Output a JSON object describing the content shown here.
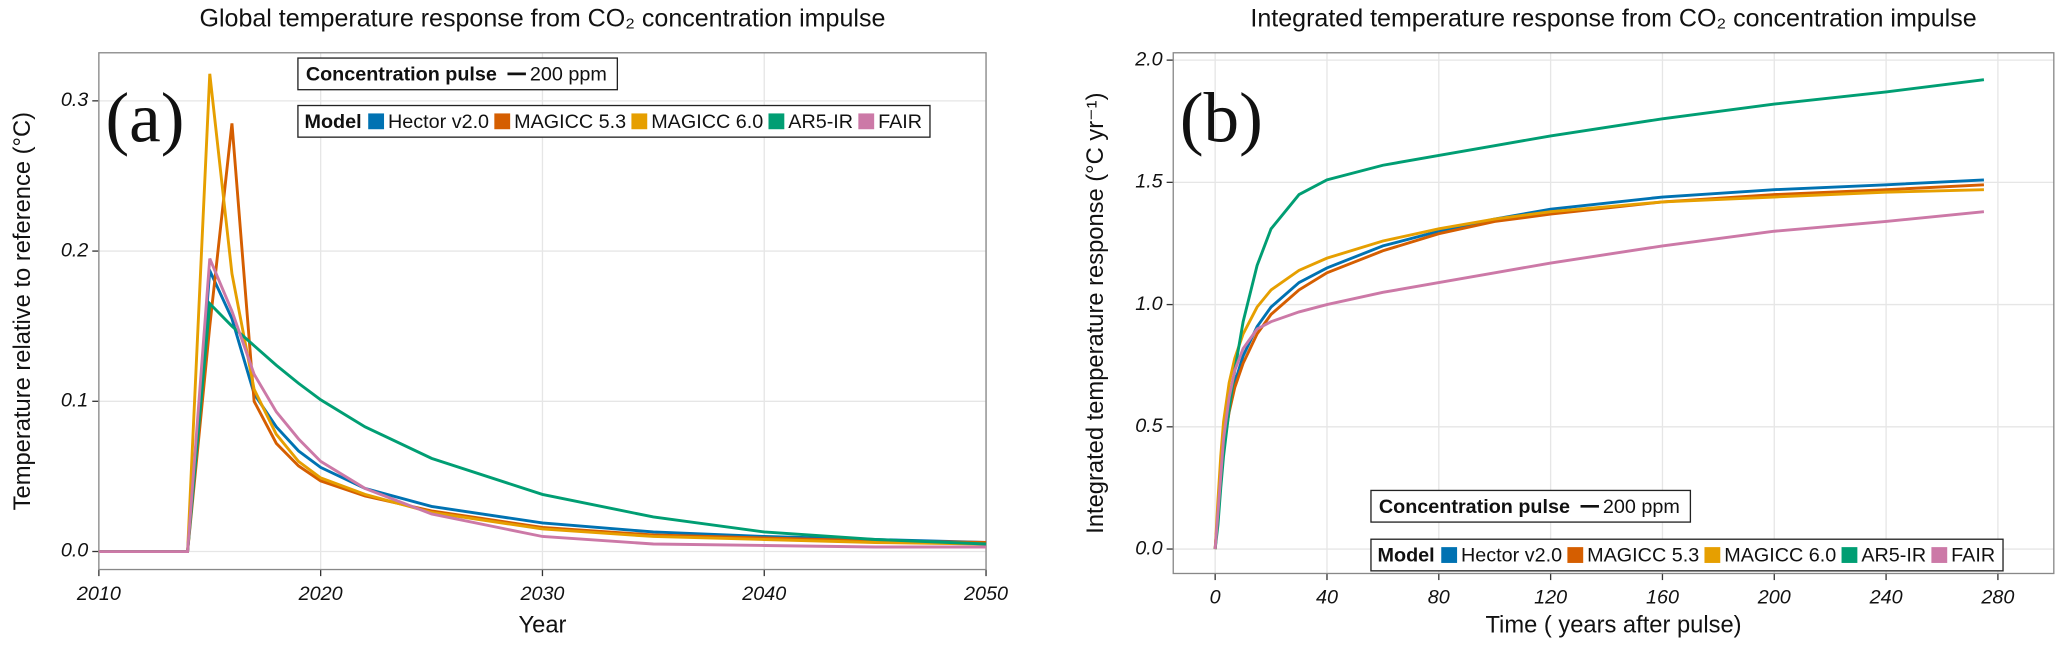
{
  "chart_data": [
    {
      "type": "line",
      "title": "Global temperature response from CO₂ concentration impulse",
      "x_label": "Year",
      "y_label": "Temperature relative to reference (°C)",
      "panel_label": "(a)",
      "pulse_legend": {
        "title": "Concentration pulse",
        "label": "200 ppm"
      },
      "legend_title": "Model",
      "x": [
        2010,
        2014,
        2015,
        2016,
        2017,
        2018,
        2019,
        2020,
        2022,
        2025,
        2030,
        2035,
        2040,
        2045,
        2050
      ],
      "series": [
        {
          "name": "Hector v2.0",
          "color": "#0072b2",
          "values": [
            0,
            0,
            0.187,
            0.155,
            0.105,
            0.083,
            0.067,
            0.056,
            0.042,
            0.03,
            0.019,
            0.013,
            0.01,
            0.008,
            0.006
          ]
        },
        {
          "name": "MAGICC 5.3",
          "color": "#d55e00",
          "values": [
            0,
            0,
            0.15,
            0.285,
            0.1,
            0.072,
            0.057,
            0.047,
            0.037,
            0.027,
            0.016,
            0.011,
            0.009,
            0.007,
            0.006
          ]
        },
        {
          "name": "MAGICC 6.0",
          "color": "#e69f00",
          "values": [
            0,
            0,
            0.318,
            0.185,
            0.108,
            0.078,
            0.06,
            0.049,
            0.038,
            0.026,
            0.015,
            0.01,
            0.008,
            0.006,
            0.005
          ]
        },
        {
          "name": "AR5-IR",
          "color": "#009e73",
          "values": [
            0,
            0,
            0.165,
            0.15,
            0.137,
            0.124,
            0.112,
            0.101,
            0.083,
            0.062,
            0.038,
            0.023,
            0.013,
            0.008,
            0.005
          ]
        },
        {
          "name": "FAIR",
          "color": "#cc79a7",
          "values": [
            0,
            0,
            0.195,
            0.16,
            0.118,
            0.093,
            0.075,
            0.06,
            0.042,
            0.025,
            0.01,
            0.005,
            0.004,
            0.003,
            0.003
          ]
        }
      ],
      "xlim": [
        2010,
        2050
      ],
      "xticks": [
        2010,
        2020,
        2030,
        2040,
        2050
      ],
      "ylim": [
        -0.012,
        0.332
      ],
      "yticks": [
        {
          "value": 0,
          "label": "0.0"
        },
        0.1,
        0.2,
        0.3
      ],
      "grid": true
    },
    {
      "type": "line",
      "title": "Integrated temperature response from CO₂ concentration impulse",
      "x_label": "Time ( years after pulse)",
      "y_label": "Integrated temperature response (°C yr⁻¹)",
      "panel_label": "(b)",
      "pulse_legend": {
        "title": "Concentration pulse",
        "label": "200 ppm"
      },
      "legend_title": "Model",
      "x": [
        0,
        1,
        2,
        3,
        5,
        7,
        10,
        15,
        20,
        30,
        40,
        60,
        80,
        100,
        120,
        160,
        200,
        240,
        275
      ],
      "series": [
        {
          "name": "Hector v2.0",
          "color": "#0072b2",
          "values": [
            0,
            0.15,
            0.3,
            0.42,
            0.58,
            0.68,
            0.79,
            0.91,
            0.99,
            1.09,
            1.15,
            1.24,
            1.3,
            1.35,
            1.39,
            1.44,
            1.47,
            1.49,
            1.51
          ]
        },
        {
          "name": "MAGICC 5.3",
          "color": "#d55e00",
          "values": [
            0,
            0.15,
            0.3,
            0.42,
            0.56,
            0.66,
            0.76,
            0.88,
            0.96,
            1.06,
            1.13,
            1.22,
            1.29,
            1.34,
            1.37,
            1.42,
            1.45,
            1.47,
            1.49
          ]
        },
        {
          "name": "MAGICC 6.0",
          "color": "#e69f00",
          "values": [
            0,
            0.2,
            0.38,
            0.52,
            0.68,
            0.78,
            0.88,
            0.99,
            1.06,
            1.14,
            1.19,
            1.26,
            1.31,
            1.35,
            1.38,
            1.42,
            1.44,
            1.46,
            1.47
          ]
        },
        {
          "name": "AR5-IR",
          "color": "#009e73",
          "values": [
            0,
            0.1,
            0.25,
            0.38,
            0.57,
            0.73,
            0.93,
            1.16,
            1.31,
            1.45,
            1.51,
            1.57,
            1.61,
            1.65,
            1.69,
            1.76,
            1.82,
            1.87,
            1.92
          ]
        },
        {
          "name": "FAIR",
          "color": "#cc79a7",
          "values": [
            0,
            0.15,
            0.3,
            0.45,
            0.62,
            0.73,
            0.82,
            0.9,
            0.93,
            0.97,
            1.0,
            1.05,
            1.09,
            1.13,
            1.17,
            1.24,
            1.3,
            1.34,
            1.38
          ]
        }
      ],
      "xlim": [
        -15,
        300
      ],
      "xticks": [
        0,
        40,
        80,
        120,
        160,
        200,
        240,
        280
      ],
      "ylim": [
        -0.1,
        2.03
      ],
      "yticks": [
        {
          "value": 0,
          "label": "0.0"
        },
        0.5,
        {
          "value": 1,
          "label": "1.0"
        },
        1.5,
        {
          "value": 2,
          "label": "2.0"
        }
      ],
      "grid": true
    }
  ]
}
